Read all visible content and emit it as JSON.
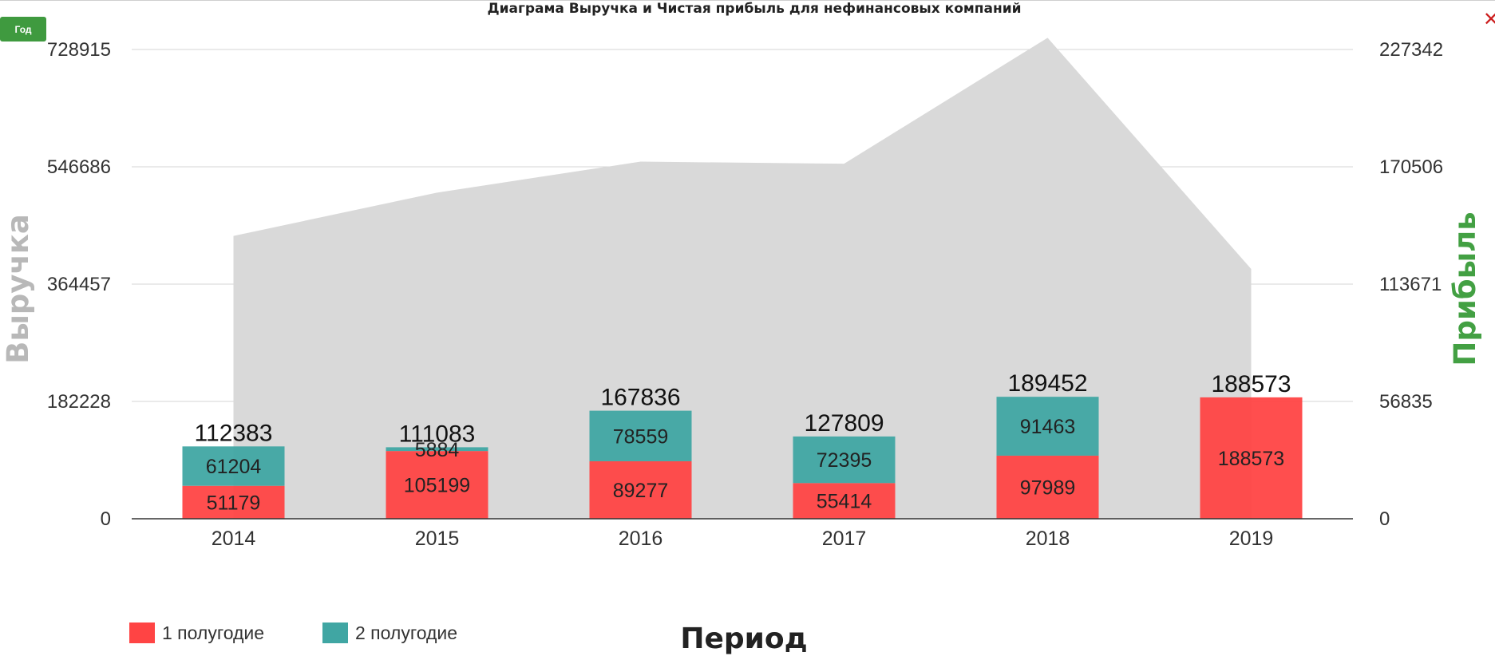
{
  "header": {
    "title": "Диаграма Выручка и Чистая прибыль для нефинансовых компаний",
    "period_button_label": "Год",
    "close_glyph": "✕"
  },
  "legend": {
    "items": [
      {
        "label": "1 полугодие",
        "color": "#ff4444"
      },
      {
        "label": "2 полугодие",
        "color": "#40a6a3"
      }
    ]
  },
  "colors": {
    "first_half": "#ff4444",
    "second_half": "#40a6a3",
    "profit_area": "#d9d9d9",
    "profit_axis_title": "#43a043",
    "revenue_axis_title": "#b8b8b8"
  },
  "chart_data": {
    "type": "bar",
    "stacked": true,
    "categories": [
      "2014",
      "2015",
      "2016",
      "2017",
      "2018",
      "2019"
    ],
    "series": [
      {
        "name": "1 полугодие",
        "axis": "left",
        "values": [
          51179,
          105199,
          89277,
          55414,
          97989,
          188573
        ]
      },
      {
        "name": "2 полугодие",
        "axis": "left",
        "values": [
          61204,
          5884,
          78559,
          72395,
          91463,
          null
        ]
      }
    ],
    "totals": [
      112383,
      111083,
      167836,
      127809,
      189452,
      188573
    ],
    "profit_area": {
      "type": "area",
      "axis": "right",
      "values": [
        137000,
        158000,
        173000,
        172000,
        233000,
        121000
      ]
    },
    "title": "Диаграма Выручка и Чистая прибыль для нефинансовых компаний",
    "xlabel": "Период",
    "ylabel": "Выручка",
    "y2label": "Прибыль",
    "y_ticks": [
      "0",
      "182228",
      "364457",
      "546686",
      "728915"
    ],
    "y2_ticks": [
      "0",
      "56835",
      "113671",
      "170506",
      "227342"
    ],
    "ylim": [
      0,
      728915
    ],
    "y2lim": [
      0,
      227342
    ],
    "grid": true,
    "legend_position": "bottom-left"
  }
}
